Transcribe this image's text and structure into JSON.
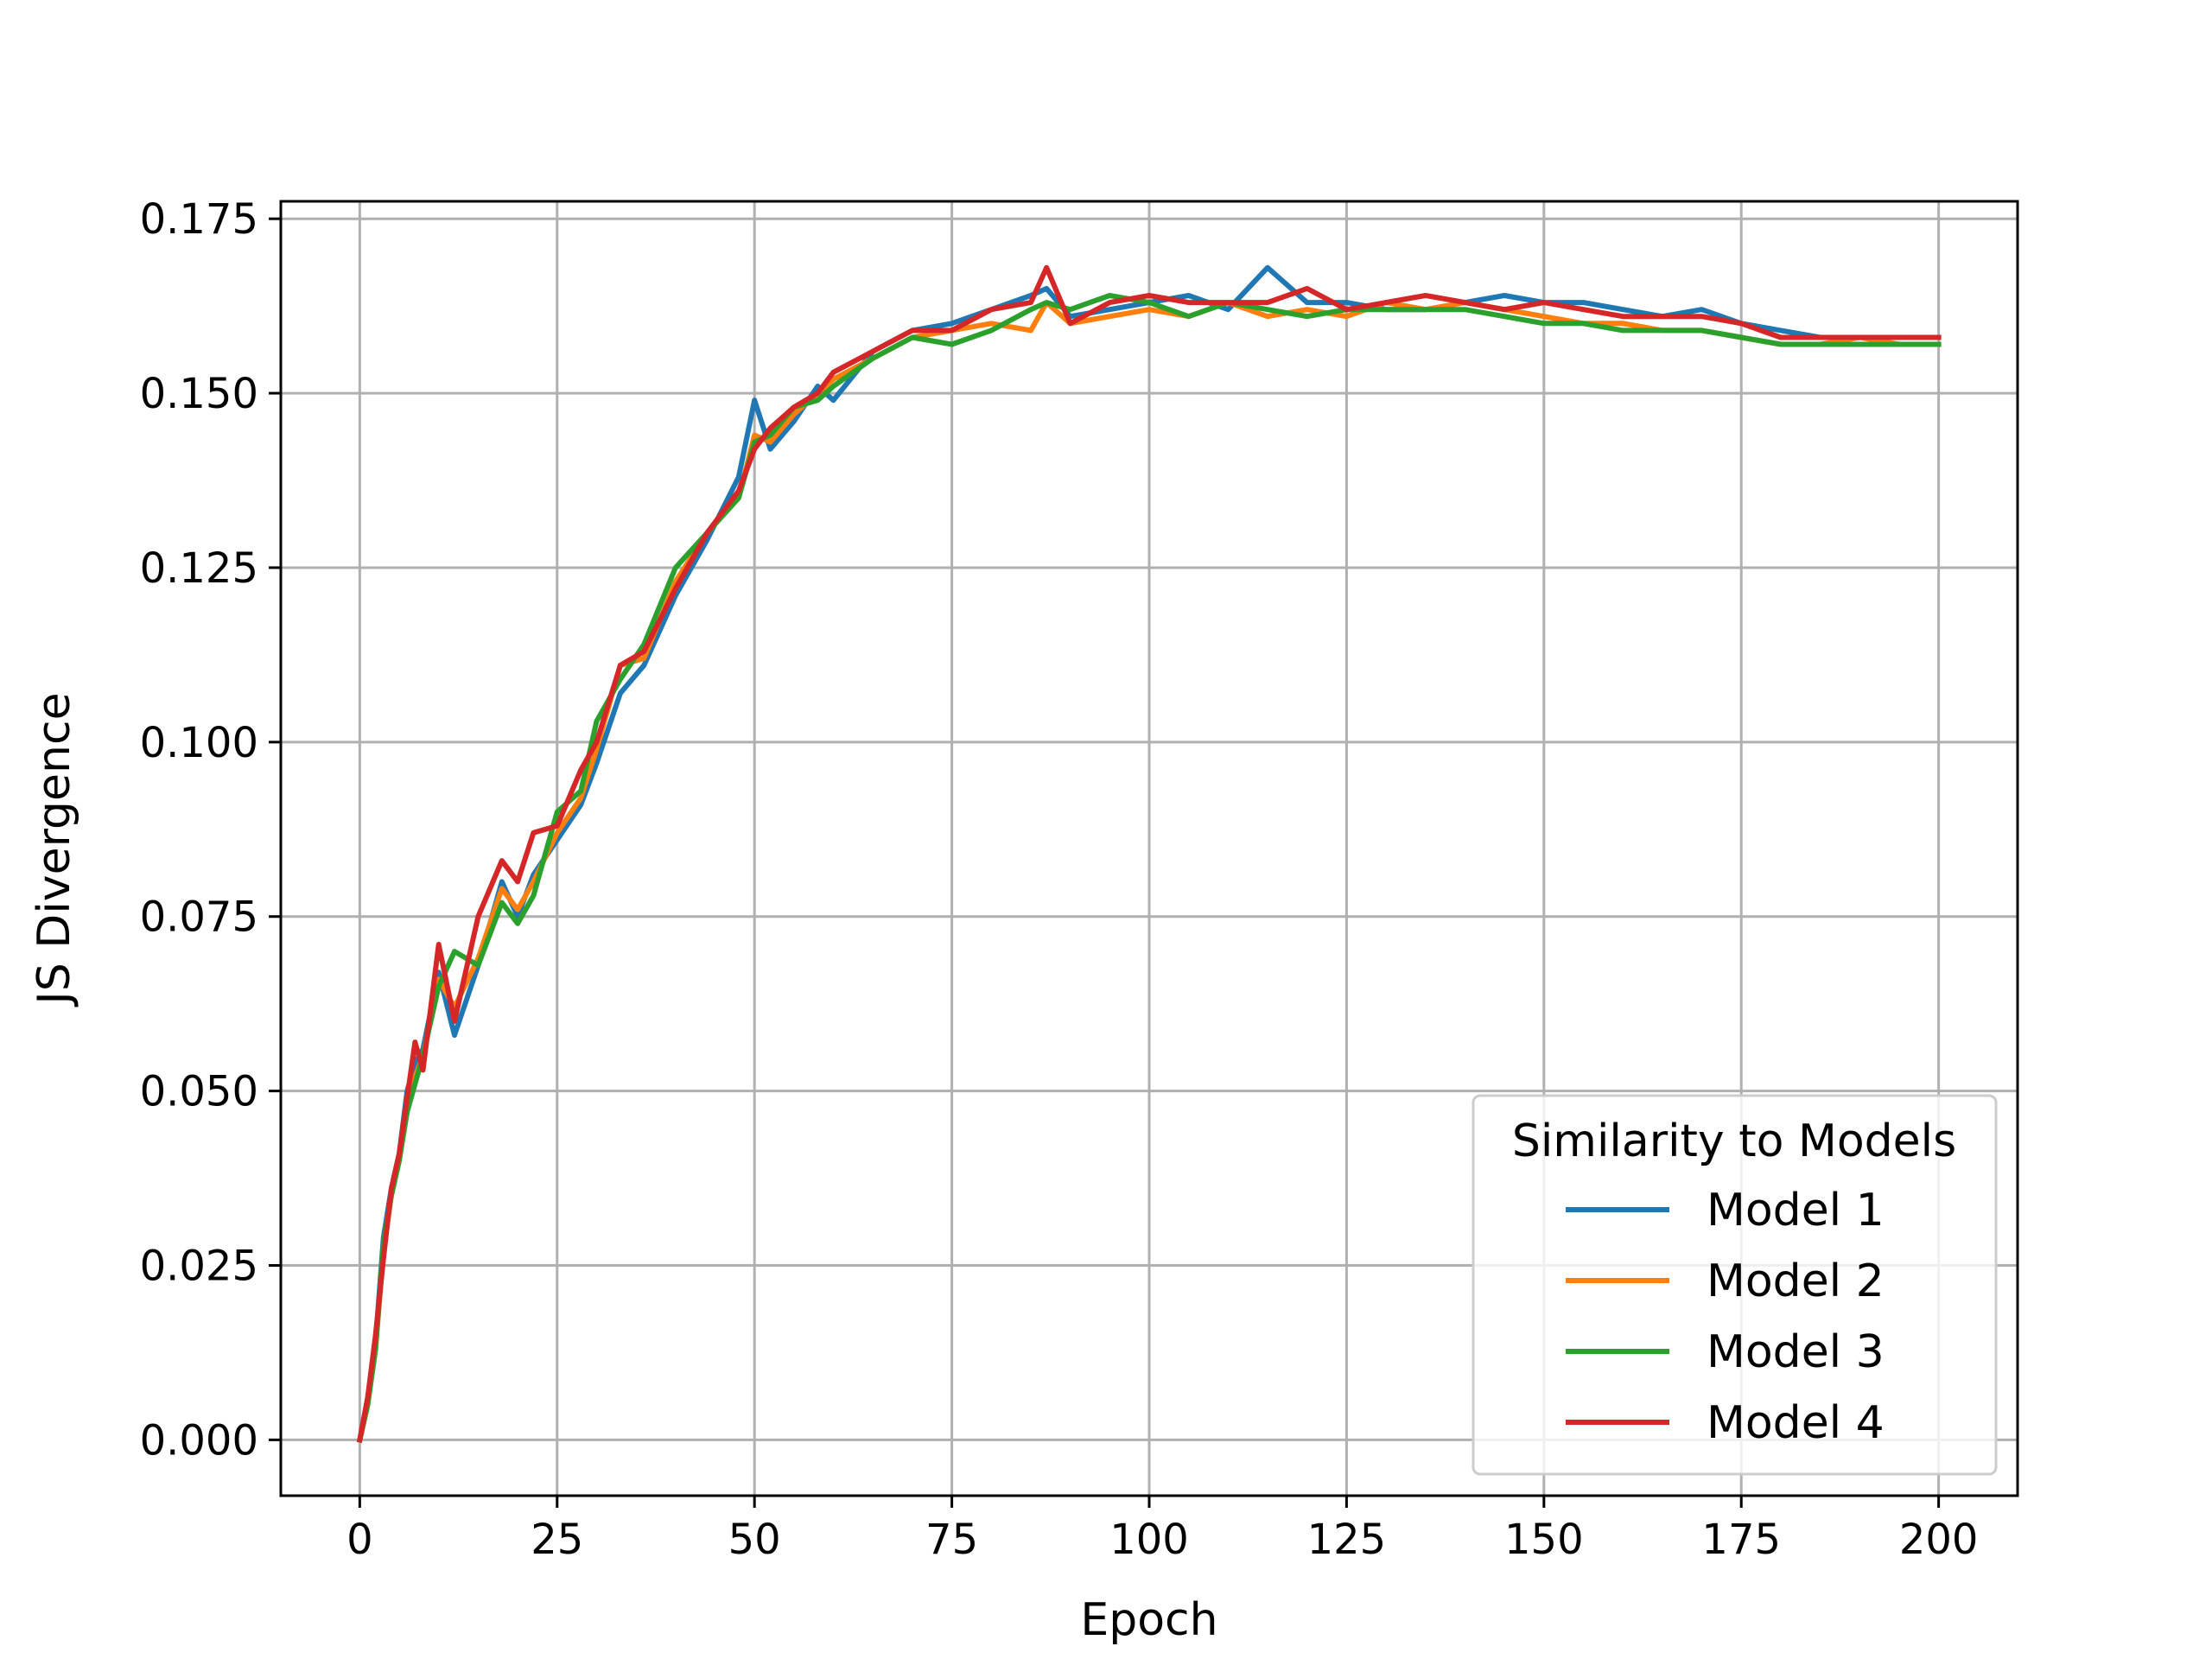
{
  "chart_data": {
    "type": "line",
    "title": "",
    "xlabel": "Epoch",
    "ylabel": "JS Divergence",
    "xlim": [
      -10,
      210
    ],
    "ylim": [
      -0.008,
      0.1775
    ],
    "xticks": [
      0,
      25,
      50,
      75,
      100,
      125,
      150,
      175,
      200
    ],
    "xtick_labels": [
      "0",
      "25",
      "50",
      "75",
      "100",
      "125",
      "150",
      "175",
      "200"
    ],
    "yticks": [
      0.0,
      0.025,
      0.05,
      0.075,
      0.1,
      0.125,
      0.15,
      0.175
    ],
    "ytick_labels": [
      "0.000",
      "0.025",
      "0.050",
      "0.075",
      "0.100",
      "0.125",
      "0.150",
      "0.175"
    ],
    "grid": true,
    "legend": {
      "title": "Similarity to Models",
      "position": "lower-right"
    },
    "x_keypoints": [
      0,
      1,
      2,
      3,
      4,
      5,
      6,
      7,
      8,
      10,
      12,
      15,
      18,
      20,
      22,
      25,
      28,
      30,
      33,
      36,
      40,
      44,
      48,
      50,
      52,
      55,
      58,
      60,
      65,
      70,
      75,
      80,
      85,
      87,
      90,
      95,
      100,
      105,
      110,
      115,
      120,
      125,
      130,
      135,
      140,
      145,
      150,
      155,
      160,
      165,
      170,
      175,
      180,
      185,
      190,
      195,
      200
    ],
    "series": [
      {
        "name": "Model 1",
        "color": "#1f77b4",
        "values": [
          0.0,
          0.006,
          0.014,
          0.029,
          0.036,
          0.041,
          0.05,
          0.054,
          0.056,
          0.067,
          0.058,
          0.068,
          0.08,
          0.075,
          0.081,
          0.086,
          0.091,
          0.097,
          0.107,
          0.111,
          0.121,
          0.129,
          0.138,
          0.149,
          0.142,
          0.146,
          0.151,
          0.149,
          0.156,
          0.159,
          0.16,
          0.162,
          0.164,
          0.165,
          0.161,
          0.162,
          0.163,
          0.164,
          0.162,
          0.168,
          0.163,
          0.163,
          0.162,
          0.162,
          0.163,
          0.164,
          0.163,
          0.163,
          0.162,
          0.161,
          0.162,
          0.16,
          0.159,
          0.158,
          0.158,
          0.158,
          0.158
        ]
      },
      {
        "name": "Model 2",
        "color": "#ff7f0e",
        "values": [
          0.0,
          0.005,
          0.013,
          0.027,
          0.035,
          0.04,
          0.048,
          0.052,
          0.055,
          0.066,
          0.062,
          0.069,
          0.079,
          0.076,
          0.08,
          0.087,
          0.092,
          0.099,
          0.111,
          0.112,
          0.123,
          0.13,
          0.135,
          0.144,
          0.143,
          0.147,
          0.15,
          0.152,
          0.155,
          0.158,
          0.159,
          0.16,
          0.159,
          0.163,
          0.16,
          0.161,
          0.162,
          0.161,
          0.163,
          0.161,
          0.162,
          0.161,
          0.163,
          0.162,
          0.163,
          0.162,
          0.161,
          0.16,
          0.16,
          0.159,
          0.159,
          0.158,
          0.157,
          0.157,
          0.158,
          0.157,
          0.157
        ]
      },
      {
        "name": "Model 3",
        "color": "#2ca02c",
        "values": [
          0.0,
          0.005,
          0.013,
          0.028,
          0.035,
          0.04,
          0.047,
          0.051,
          0.055,
          0.065,
          0.07,
          0.068,
          0.077,
          0.074,
          0.078,
          0.09,
          0.093,
          0.103,
          0.109,
          0.114,
          0.125,
          0.13,
          0.135,
          0.143,
          0.144,
          0.148,
          0.149,
          0.151,
          0.155,
          0.158,
          0.157,
          0.159,
          0.162,
          0.163,
          0.162,
          0.164,
          0.163,
          0.161,
          0.163,
          0.162,
          0.161,
          0.162,
          0.162,
          0.162,
          0.162,
          0.161,
          0.16,
          0.16,
          0.159,
          0.159,
          0.159,
          0.158,
          0.157,
          0.157,
          0.157,
          0.157,
          0.157
        ]
      },
      {
        "name": "Model 4",
        "color": "#d62728",
        "values": [
          0.0,
          0.006,
          0.015,
          0.026,
          0.036,
          0.041,
          0.049,
          0.057,
          0.053,
          0.071,
          0.06,
          0.075,
          0.083,
          0.08,
          0.087,
          0.088,
          0.096,
          0.1,
          0.111,
          0.113,
          0.122,
          0.13,
          0.136,
          0.142,
          0.145,
          0.148,
          0.15,
          0.153,
          0.156,
          0.159,
          0.159,
          0.162,
          0.163,
          0.168,
          0.16,
          0.163,
          0.164,
          0.163,
          0.163,
          0.163,
          0.165,
          0.162,
          0.163,
          0.164,
          0.163,
          0.162,
          0.163,
          0.162,
          0.161,
          0.161,
          0.161,
          0.16,
          0.158,
          0.158,
          0.158,
          0.158,
          0.158
        ]
      }
    ]
  }
}
